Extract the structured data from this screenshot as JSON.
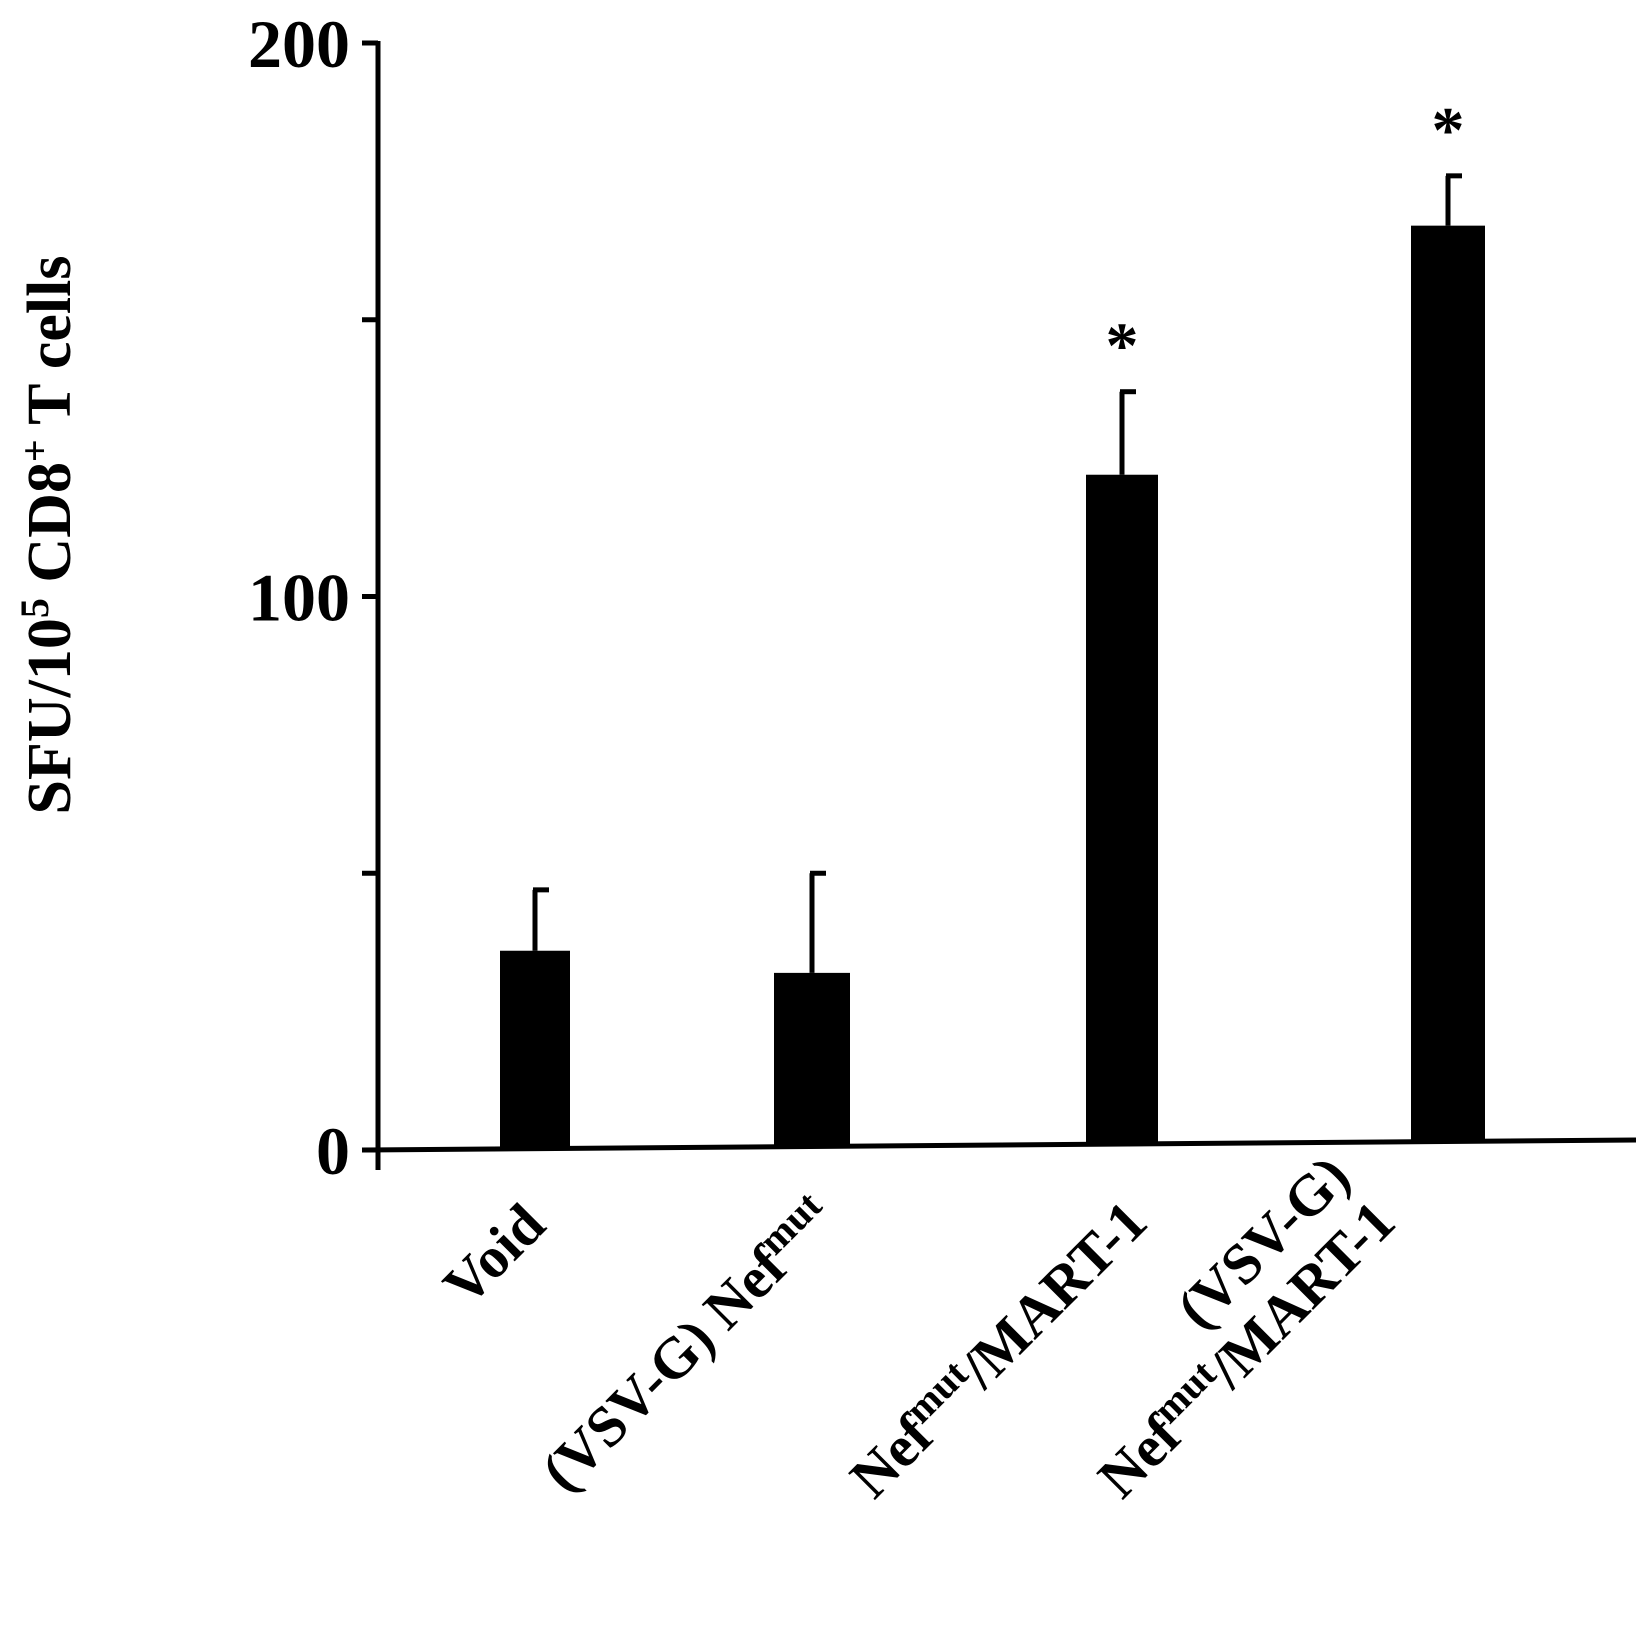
{
  "chart_data": {
    "type": "bar",
    "categories": [
      [
        "Void"
      ],
      [
        "(VSV-G) Nef",
        "mut"
      ],
      [
        "Nef",
        "mut",
        "/MART-1"
      ],
      [
        "(VSV-G)",
        "Nef",
        "mut",
        "/MART-1"
      ]
    ],
    "values": [
      36,
      32,
      122,
      167
    ],
    "errors": [
      11,
      18,
      15,
      9
    ],
    "significance": [
      "",
      "",
      "*",
      "*"
    ],
    "ylabel": {
      "part1": "SFU/10",
      "sup1": "5",
      "part2": " CD8",
      "sup2": "+",
      "part3": " T cells"
    },
    "ylim": [
      0,
      200
    ],
    "yticks": [
      0,
      50,
      100,
      150,
      200
    ],
    "ytick_labels": [
      "0",
      "",
      "100",
      "",
      "200"
    ],
    "bar_color": "#000000",
    "grid": false,
    "legend": "none"
  }
}
